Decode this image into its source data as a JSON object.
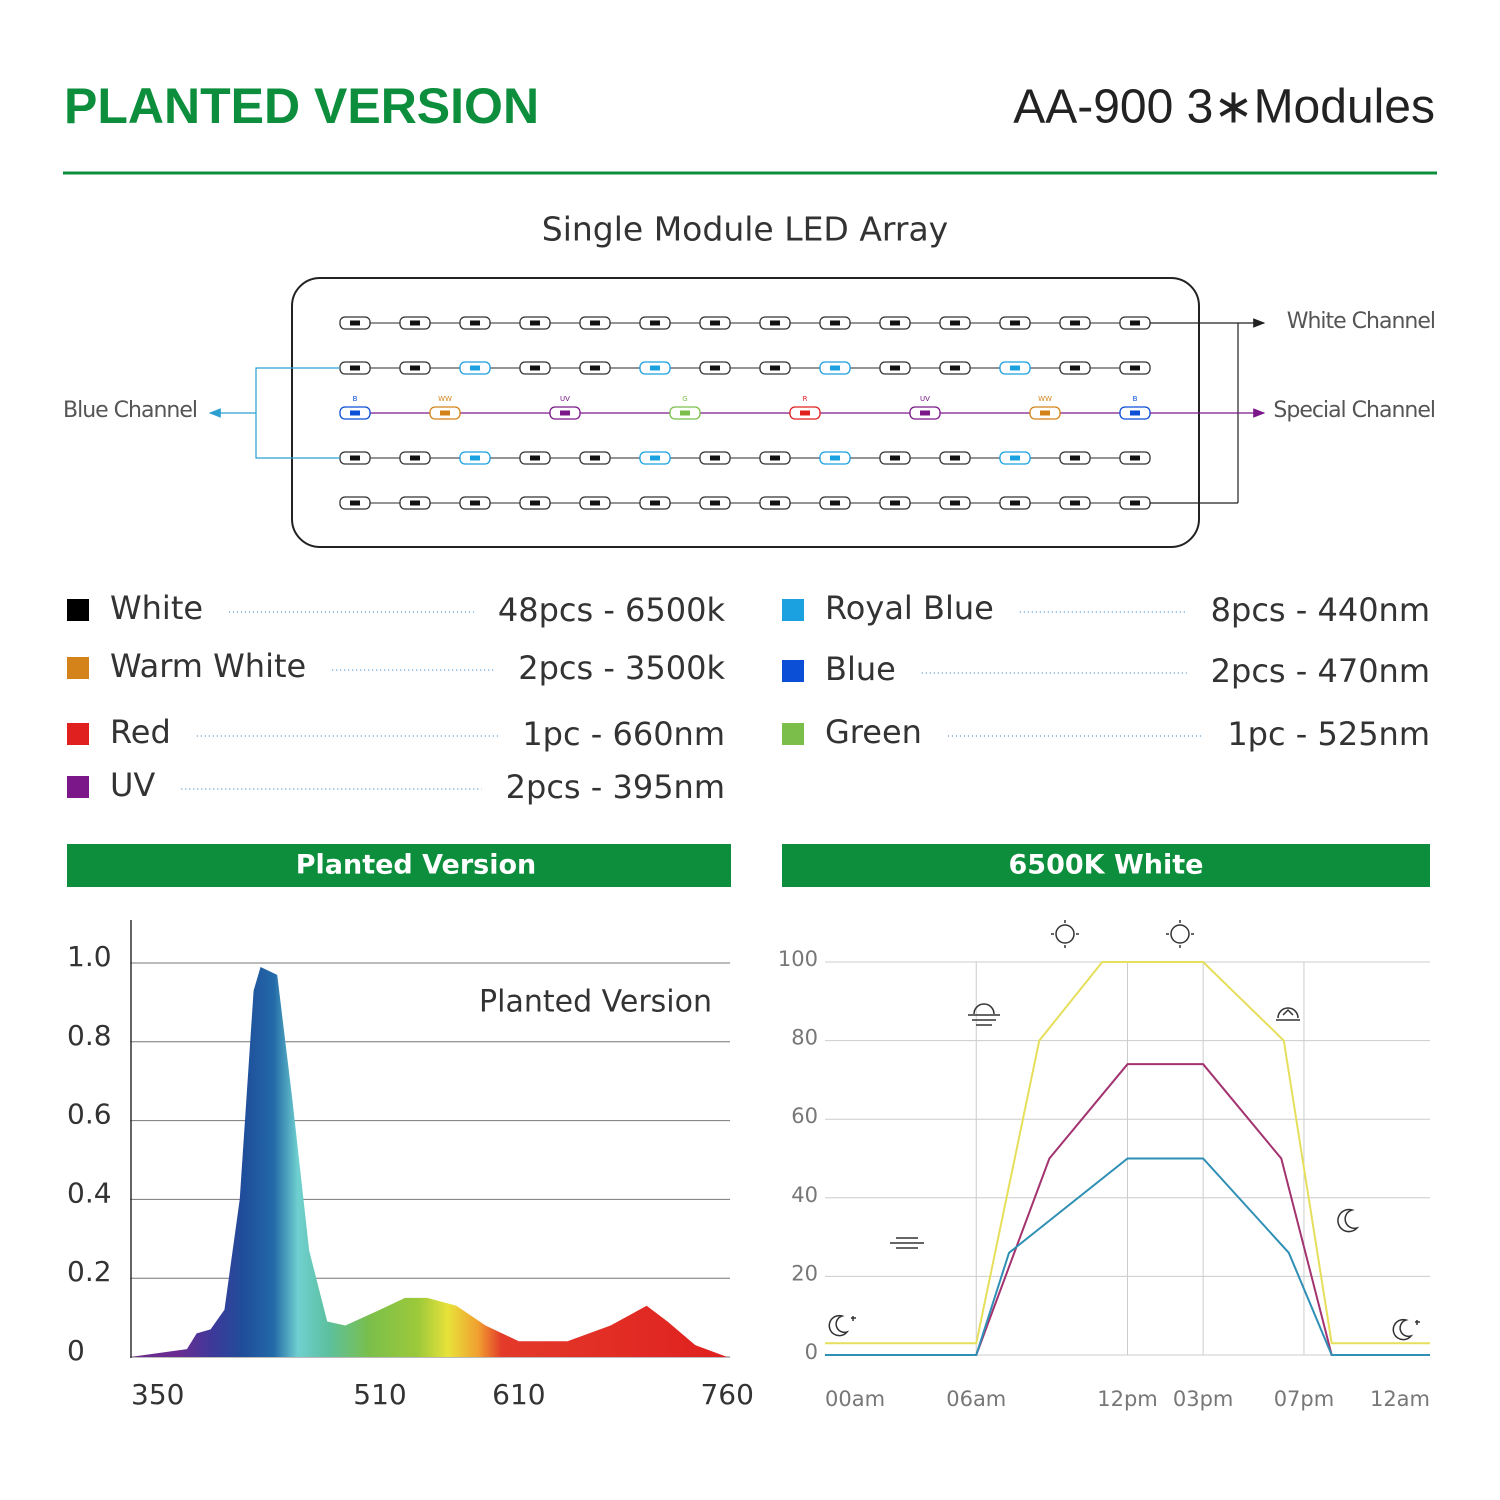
{
  "header": {
    "title": "PLANTED VERSION",
    "model": "AA-900  3∗Modules"
  },
  "module": {
    "title": "Single Module LED Array",
    "white_channel": "White Channel",
    "special_channel": "Special Channel",
    "blue_channel": "Blue Channel",
    "special_leds": [
      "B",
      "WW",
      "UV",
      "G",
      "R",
      "UV",
      "WW",
      "B"
    ]
  },
  "legend": {
    "items": [
      {
        "name": "White",
        "spec": "48pcs - 6500k",
        "color": "#000000"
      },
      {
        "name": "Warm White",
        "spec": "2pcs - 3500k",
        "color": "#d4831a"
      },
      {
        "name": "Red",
        "spec": "1pc - 660nm",
        "color": "#e0201f"
      },
      {
        "name": "UV",
        "spec": "2pcs - 395nm",
        "color": "#7b1789"
      },
      {
        "name": "Royal Blue",
        "spec": "8pcs - 440nm",
        "color": "#1ba0e0"
      },
      {
        "name": "Blue",
        "spec": "2pcs - 470nm",
        "color": "#0a4fd6"
      },
      {
        "name": "Green",
        "spec": "1pc - 525nm",
        "color": "#7bbf4a"
      }
    ]
  },
  "chart_data": [
    {
      "type": "area",
      "title": "Planted Version",
      "annotation": "Planted Version",
      "x": [
        330,
        371,
        378,
        388,
        398,
        409,
        419,
        424,
        436,
        447,
        459,
        472,
        485,
        510,
        528,
        544,
        565,
        586,
        610,
        645,
        676,
        702,
        717,
        737,
        760
      ],
      "values": [
        0,
        0.02,
        0.06,
        0.07,
        0.12,
        0.4,
        0.93,
        0.99,
        0.97,
        0.65,
        0.27,
        0.09,
        0.08,
        0.12,
        0.15,
        0.15,
        0.13,
        0.08,
        0.04,
        0.04,
        0.08,
        0.13,
        0.09,
        0.03,
        0
      ],
      "xlim": [
        330,
        762
      ],
      "xticks": [
        350,
        510,
        610,
        760
      ],
      "ylim": [
        0,
        1
      ],
      "yticks": [
        0,
        0.2,
        0.4,
        0.6,
        0.8,
        {
          "value": 1,
          "label": "1.0"
        }
      ],
      "grid": true
    },
    {
      "type": "line",
      "title": "6500K White",
      "series": [
        {
          "color": "#e6df5c",
          "x": [
            0,
            6,
            8.5,
            11,
            15,
            18.2,
            20.1,
            24
          ],
          "values": [
            3,
            3,
            80,
            100,
            100,
            80,
            3,
            3
          ]
        },
        {
          "color": "#a3336f",
          "x": [
            0,
            6,
            8.9,
            12,
            15,
            18.1,
            20.1,
            24
          ],
          "values": [
            0,
            0,
            50,
            74,
            74,
            50,
            0,
            0
          ]
        },
        {
          "color": "#2f8fb4",
          "x": [
            0,
            6,
            7.3,
            12,
            15,
            18.4,
            20.1,
            24
          ],
          "values": [
            0,
            0,
            26,
            50,
            50,
            26,
            0,
            0
          ]
        }
      ],
      "xlim": [
        0,
        24
      ],
      "xticks": [
        {
          "value": 0,
          "label": "00am"
        },
        {
          "value": 6,
          "label": "06am"
        },
        {
          "value": 12,
          "label": "12pm"
        },
        {
          "value": 15,
          "label": "03pm"
        },
        {
          "value": 19,
          "label": "07pm"
        },
        {
          "value": 24,
          "label": "12am"
        }
      ],
      "ylim": [
        0,
        100
      ],
      "yticks": [
        0,
        20,
        40,
        60,
        80,
        100
      ],
      "grid": true
    }
  ]
}
